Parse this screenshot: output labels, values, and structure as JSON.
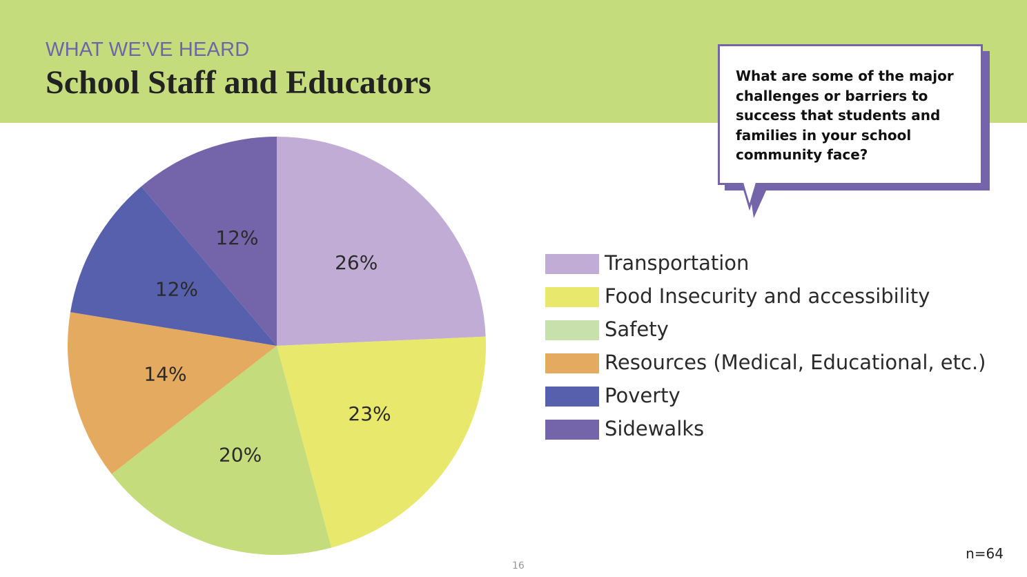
{
  "header": {
    "eyebrow": "WHAT WE’VE HEARD",
    "title": "School Staff and Educators"
  },
  "question": {
    "text": "What are some of the major challenges or barriers to success that students and families in your school community face?"
  },
  "chart_data": {
    "type": "pie",
    "categories": [
      "Transportation",
      "Food Insecurity and accessibility",
      "Safety",
      "Resources (Medical, Educational, etc.)",
      "Poverty",
      "Sidewalks"
    ],
    "values": [
      26,
      23,
      20,
      14,
      12,
      12
    ],
    "value_labels": [
      "26%",
      "23%",
      "20%",
      "14%",
      "12%",
      "12%"
    ],
    "colors": [
      "#c0acd4",
      "#e8e86c",
      "#c4dc7c",
      "#e4aa60",
      "#5660ac",
      "#7464aa"
    ],
    "legend_swatch_colors": [
      "#c0acd4",
      "#e8e86c",
      "#c8e0ac",
      "#e4aa60",
      "#5660ac",
      "#7464aa"
    ],
    "legend_position": "right"
  },
  "legend": {
    "items": [
      {
        "label": "Transportation"
      },
      {
        "label": "Food Insecurity and accessibility"
      },
      {
        "label": "Safety"
      },
      {
        "label": "Resources (Medical, Educational, etc.)"
      },
      {
        "label": "Poverty"
      },
      {
        "label": "Sidewalks"
      }
    ]
  },
  "footer": {
    "n": "n=64",
    "page": "16"
  },
  "colors": {
    "banner": "#c4dc7c",
    "eyebrow": "#6a66a8",
    "bubble_shadow": "#7464aa"
  }
}
